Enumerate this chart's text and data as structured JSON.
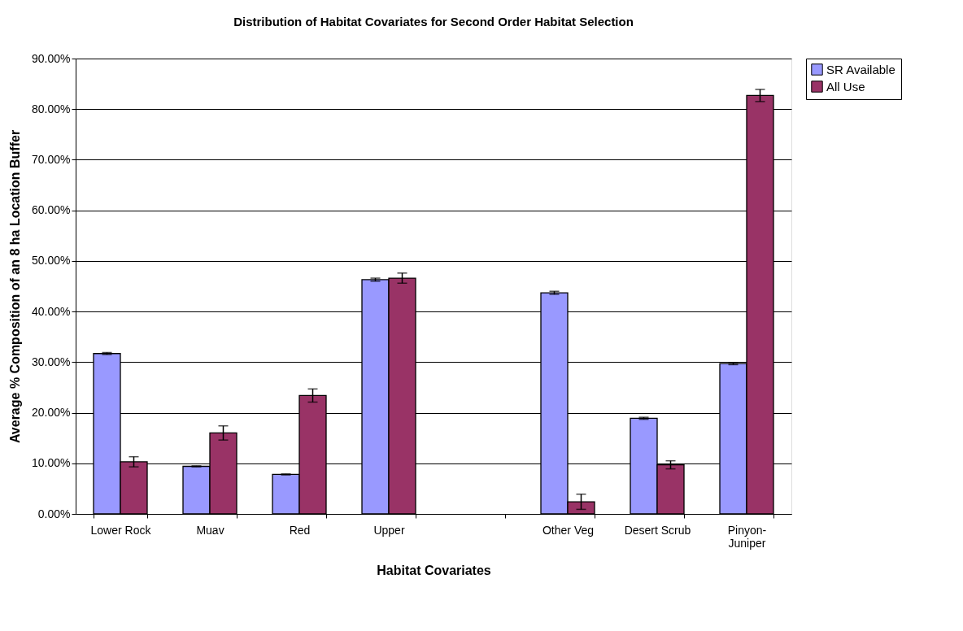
{
  "chart_data": {
    "type": "bar",
    "title": "Distribution of Habitat Covariates for Second Order Habitat Selection",
    "xlabel": "Habitat Covariates",
    "ylabel": "Average % Composition of an 8 ha Location Buffer",
    "categories": [
      "Lower Rock",
      "Muav",
      "Red",
      "Upper",
      null,
      "Other Veg",
      "Desert Scrub",
      "Pinyon-Juniper"
    ],
    "series": [
      {
        "name": "SR Available",
        "color": "#9999ff",
        "values": [
          31.7,
          9.4,
          7.8,
          46.3,
          null,
          43.7,
          18.9,
          29.7
        ],
        "errors": [
          0.2,
          0.1,
          0.1,
          0.3,
          null,
          0.3,
          0.2,
          0.2
        ]
      },
      {
        "name": "All Use",
        "color": "#993366",
        "values": [
          10.3,
          16.0,
          23.4,
          46.6,
          null,
          2.4,
          9.7,
          82.7
        ],
        "errors": [
          1.0,
          1.4,
          1.3,
          1.0,
          null,
          1.5,
          0.8,
          1.2
        ]
      }
    ],
    "ylim": [
      0,
      90
    ],
    "yticks": [
      {
        "value": 0,
        "label": "0.00%"
      },
      {
        "value": 10,
        "label": "10.00%"
      },
      {
        "value": 20,
        "label": "20.00%"
      },
      {
        "value": 30,
        "label": "30.00%"
      },
      {
        "value": 40,
        "label": "40.00%"
      },
      {
        "value": 50,
        "label": "50.00%"
      },
      {
        "value": 60,
        "label": "60.00%"
      },
      {
        "value": 70,
        "label": "70.00%"
      },
      {
        "value": 80,
        "label": "80.00%"
      },
      {
        "value": 90,
        "label": "90.00%"
      }
    ],
    "grid": "y",
    "legend": "right"
  }
}
